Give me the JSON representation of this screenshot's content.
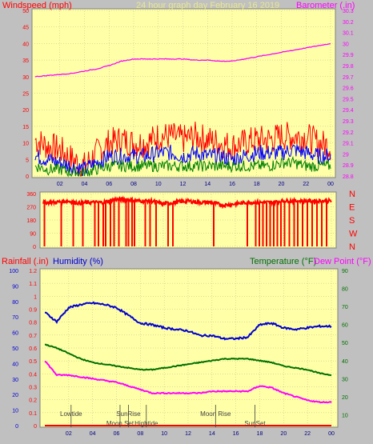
{
  "colors": {
    "plot_bg": "#ffffa8",
    "frame": "#c0c0c0",
    "wind": "#ff0000",
    "windavg": "#0000ff",
    "windlow": "#008000",
    "baro": "#ff00ff",
    "dir": "#ff0000",
    "humidity": "#0000d0",
    "temperature": "#007000",
    "dewpoint": "#ff00ff",
    "rain": "#ff0000",
    "astro": "#404040"
  },
  "header": {
    "left": "Windspeed (mph)",
    "center": "24 hour graph day   February 16 2019",
    "right": "Barometer (.in)"
  },
  "panel3": {
    "rain_label": "Rainfall (.in)",
    "humidity_label": "Humidity (%)",
    "temperature_label": "Temperature (°F)",
    "dewpoint_label": "Dew Point (°F)"
  },
  "chart_data": [
    {
      "type": "line",
      "title": "24 hour graph day   February 16 2019",
      "ylabel": "Windspeed (mph)",
      "y2label": "Barometer (.in)",
      "x_tick_labels": [
        "02",
        "04",
        "06",
        "08",
        "10",
        "12",
        "14",
        "16",
        "18",
        "20",
        "22",
        "00"
      ],
      "ylim": [
        0,
        50
      ],
      "y_ticks": [
        0,
        5,
        10,
        15,
        20,
        25,
        30,
        35,
        40,
        45,
        50
      ],
      "y2lim": [
        28.8,
        30.3
      ],
      "y2_ticks": [
        "28.8",
        "28.9",
        "29",
        "29.1",
        "29.2",
        "29.3",
        "29.4",
        "29.5",
        "29.6",
        "29.7",
        "29.8",
        "29.9",
        "30",
        "30.1",
        "30.2",
        "30.3"
      ],
      "hours": [
        0,
        1,
        2,
        3,
        4,
        5,
        6,
        7,
        8,
        9,
        10,
        11,
        12,
        13,
        14,
        15,
        16,
        17,
        18,
        19,
        20,
        21,
        22,
        23,
        24
      ],
      "series": [
        {
          "role": "wind_gust",
          "values": [
            11,
            9,
            8,
            5,
            3,
            7,
            10,
            11,
            10,
            10,
            12,
            12,
            11,
            12,
            11,
            10,
            9,
            10,
            11,
            11,
            12,
            12,
            12,
            10,
            9
          ]
        },
        {
          "role": "wind_avg",
          "values": [
            6,
            5,
            4,
            3,
            2,
            4,
            6,
            6,
            6,
            6,
            7,
            7,
            6,
            7,
            6,
            6,
            5,
            6,
            7,
            7,
            7,
            8,
            7,
            6,
            6
          ]
        },
        {
          "role": "wind_low",
          "values": [
            3,
            2,
            2,
            1,
            1,
            2,
            3,
            3,
            3,
            3,
            3,
            3,
            3,
            3,
            3,
            3,
            3,
            3,
            3,
            3,
            4,
            4,
            3,
            3,
            3
          ]
        },
        {
          "role": "barometer",
          "values": [
            29.7,
            29.71,
            29.72,
            29.73,
            29.75,
            29.77,
            29.8,
            29.84,
            29.86,
            29.86,
            29.86,
            29.86,
            29.86,
            29.85,
            29.85,
            29.84,
            29.84,
            29.86,
            29.88,
            29.9,
            29.92,
            29.94,
            29.96,
            29.98,
            30.0
          ]
        }
      ]
    },
    {
      "type": "scatter",
      "ylabel": "Wind direction",
      "y_ticks": [
        "0",
        "90",
        "180",
        "270",
        "360"
      ],
      "ylim": [
        0,
        360
      ],
      "compass": [
        "N",
        "W",
        "S",
        "E",
        "N"
      ],
      "hours": [
        0,
        1,
        2,
        3,
        4,
        5,
        6,
        7,
        8,
        9,
        10,
        11,
        12,
        13,
        14,
        15,
        16,
        17,
        18,
        19,
        20,
        21,
        22,
        23,
        24
      ],
      "values": [
        300,
        300,
        310,
        295,
        300,
        300,
        320,
        320,
        310,
        310,
        290,
        300,
        310,
        300,
        300,
        280,
        290,
        300,
        300,
        300,
        310,
        310,
        310,
        310,
        310
      ],
      "spikes_to_zero_hours": [
        0.1,
        1.5,
        2.5,
        3.3,
        4.3,
        4.6,
        5.0,
        5.2,
        5.6,
        5.9,
        6.3,
        6.9,
        7.1,
        7.4,
        7.6,
        8.5,
        8.9,
        9.4,
        10.4,
        10.8,
        14.2,
        17.0,
        17.7,
        18.0,
        18.3,
        18.6,
        18.9,
        19.2,
        19.5,
        19.8,
        20.1,
        20.5,
        20.9,
        21.2,
        21.6,
        22.0,
        22.4,
        22.8,
        23.2,
        23.6
      ]
    },
    {
      "type": "line",
      "x_tick_labels": [
        "02",
        "04",
        "06",
        "08",
        "10",
        "12",
        "14",
        "16",
        "18",
        "20",
        "22",
        "00"
      ],
      "rain_ticks": [
        "0",
        "0.1",
        "0.2",
        "0.3",
        "0.4",
        "0.5",
        "0.6",
        "0.7",
        "0.8",
        "0.9",
        "1",
        "1.1",
        "1.2"
      ],
      "humidity_ticks": [
        "0",
        "10",
        "20",
        "30",
        "40",
        "50",
        "60",
        "70",
        "80",
        "90",
        "100"
      ],
      "temp_ticks": [
        "10",
        "20",
        "30",
        "40",
        "50",
        "60",
        "70",
        "80",
        "90"
      ],
      "hours": [
        0,
        1,
        2,
        3,
        4,
        5,
        6,
        7,
        8,
        9,
        10,
        11,
        12,
        13,
        14,
        15,
        16,
        17,
        18,
        19,
        20,
        21,
        22,
        23,
        24
      ],
      "series": [
        {
          "name": "Humidity (%)",
          "values": [
            73,
            67,
            76,
            78,
            79,
            78,
            76,
            71,
            66,
            65,
            63,
            62,
            61,
            58,
            58,
            56,
            56,
            57,
            65,
            66,
            63,
            62,
            63,
            64,
            64
          ]
        },
        {
          "name": "Temperature (°F)",
          "values": [
            49,
            47,
            44,
            41,
            39,
            38,
            37,
            36,
            35,
            35,
            36,
            37,
            38,
            39,
            40,
            41,
            41,
            41,
            40,
            39,
            37,
            36,
            35,
            33,
            32
          ]
        },
        {
          "name": "Dew Point (°F)",
          "values": [
            40,
            32,
            32,
            31,
            30,
            29,
            28,
            26,
            24,
            22,
            22,
            22,
            22,
            22,
            23,
            23,
            23,
            23,
            26,
            25,
            22,
            20,
            18,
            17,
            17
          ]
        },
        {
          "name": "Rainfall (.in)",
          "values": [
            0,
            0,
            0,
            0,
            0,
            0,
            0,
            0,
            0,
            0,
            0,
            0,
            0,
            0,
            0,
            0,
            0,
            0,
            0,
            0,
            0,
            0,
            0,
            0,
            0
          ]
        }
      ],
      "astro_events": [
        {
          "label": "Lowtide",
          "hour": 2.2
        },
        {
          "label": "Moon Set",
          "hour": 6.3
        },
        {
          "label": "SunRise",
          "hour": 7.0
        },
        {
          "label": "Hightide",
          "hour": 8.5
        },
        {
          "label": "Moon Rise",
          "hour": 14.3
        },
        {
          "label": "SunSet",
          "hour": 17.6
        }
      ]
    }
  ]
}
